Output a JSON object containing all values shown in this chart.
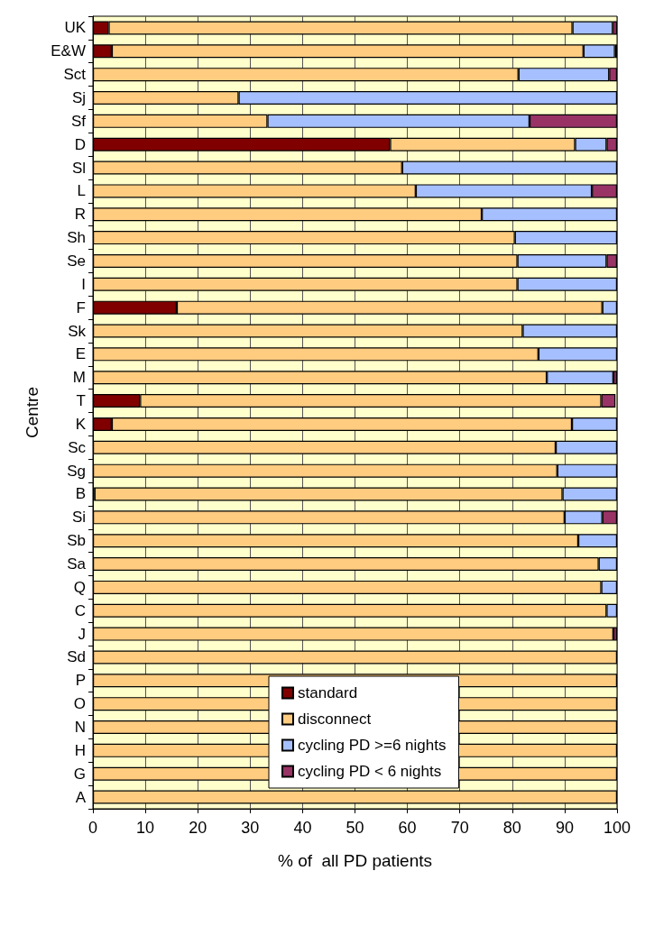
{
  "chart_data": {
    "type": "bar",
    "orientation": "horizontal",
    "stacked": true,
    "xlabel": "% of  all PD patients",
    "ylabel": "Centre",
    "categories": [
      "UK",
      "E&W",
      "Sct",
      "Sj",
      "Sf",
      "D",
      "Sl",
      "L",
      "R",
      "Sh",
      "Se",
      "I",
      "F",
      "Sk",
      "E",
      "M",
      "T",
      "K",
      "Sc",
      "Sg",
      "B",
      "Si",
      "Sb",
      "Sa",
      "Q",
      "C",
      "J",
      "Sd",
      "P",
      "O",
      "N",
      "H",
      "G",
      "A"
    ],
    "series": [
      {
        "name": "standard",
        "color": "#800000",
        "values": [
          3,
          3.6,
          0,
          0,
          0,
          56.7,
          0,
          0,
          0,
          0,
          0,
          0,
          16,
          0,
          0,
          0,
          9,
          3.6,
          0,
          0,
          0.3,
          0,
          0,
          0,
          0,
          0,
          0,
          0,
          0,
          0,
          0,
          0,
          0,
          0
        ]
      },
      {
        "name": "disconnect",
        "color": "#ffcc80",
        "values": [
          88.5,
          90,
          81.2,
          27.8,
          33.3,
          35.3,
          59,
          61.6,
          74.2,
          80.5,
          81,
          81,
          81.2,
          82,
          85,
          86.6,
          88,
          87.8,
          88.3,
          88.6,
          89.3,
          90,
          92.6,
          96.5,
          97,
          98,
          99.3,
          100,
          100,
          100,
          100,
          100,
          100,
          100
        ]
      },
      {
        "name": "cycling PD >=6 nights",
        "color": "#a6bfff",
        "values": [
          7.7,
          6,
          17.3,
          72.2,
          50,
          6,
          41,
          33.6,
          25.8,
          19.5,
          17,
          19,
          2.8,
          18,
          15,
          12.7,
          0,
          8.6,
          11.7,
          11.4,
          10.4,
          7.2,
          7.4,
          3.5,
          3,
          2,
          0,
          0,
          0,
          0,
          0,
          0,
          0,
          0
        ]
      },
      {
        "name": "cycling PD < 6 nights",
        "color": "#993366",
        "values": [
          0.8,
          0.4,
          1.5,
          0,
          16.7,
          2,
          0,
          4.8,
          0,
          0,
          2,
          0,
          0,
          0,
          0,
          0.7,
          2.7,
          0,
          0,
          0,
          0,
          2.8,
          0,
          0,
          0,
          0,
          0.7,
          0,
          0,
          0,
          0,
          0,
          0,
          0
        ]
      }
    ],
    "xlim": [
      0,
      100
    ],
    "xticks": [
      0,
      10,
      20,
      30,
      40,
      50,
      60,
      70,
      80,
      90,
      100
    ],
    "bands": [
      {
        "axis": "x",
        "from": 0,
        "to": 100,
        "color": "#ffffcc"
      }
    ],
    "grid": "x",
    "legend": "bottom"
  }
}
